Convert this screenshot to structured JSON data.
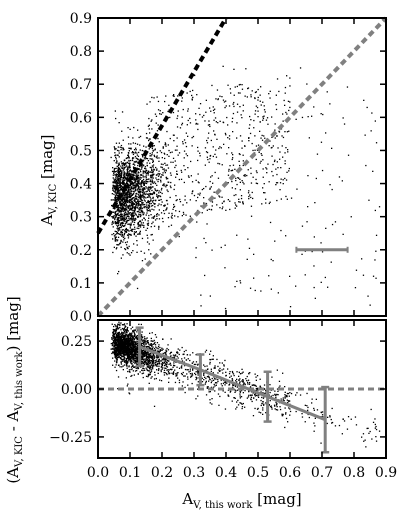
{
  "chart_data": [
    {
      "type": "scatter",
      "panel": "top",
      "xlabel": "",
      "ylabel_main": "A",
      "ylabel_sub": "V, KIC",
      "ylabel_unit": "[mag]",
      "xlim": [
        0.0,
        0.9
      ],
      "ylim": [
        0.0,
        0.9
      ],
      "yticks": [
        "0.0",
        "0.1",
        "0.2",
        "0.3",
        "0.4",
        "0.5",
        "0.6",
        "0.7",
        "0.8",
        "0.9"
      ],
      "scatter_description": "dense cloud of ~2500 points concentrated at x 0.03-0.2, y 0.2-0.5, with a sparser tail extending to x ~0.9",
      "reference_lines": [
        {
          "name": "",
          "style": "dashed",
          "color": "#000000",
          "x": [
            0.0,
            0.4
          ],
          "y": [
            0.25,
            0.9
          ]
        },
        {
          "name": "",
          "style": "dashed",
          "color": "#808080",
          "x": [
            0.0,
            0.9
          ],
          "y": [
            0.0,
            0.9
          ]
        }
      ],
      "error_scale_bar": {
        "x": [
          0.62,
          0.78
        ],
        "y": 0.2,
        "color": "#808080"
      }
    },
    {
      "type": "scatter",
      "panel": "bottom",
      "xlabel_main": "A",
      "xlabel_sub": "V, this work",
      "xlabel_unit": "[mag]",
      "ylabel_open": "(A",
      "ylabel_sub1": "V, KIC",
      "ylabel_mid": " - A",
      "ylabel_sub2": "V, this work",
      "ylabel_close": ") [mag]",
      "xlim": [
        0.0,
        0.9
      ],
      "ylim": [
        -0.36,
        0.36
      ],
      "xticks": [
        "0.0",
        "0.1",
        "0.2",
        "0.3",
        "0.4",
        "0.5",
        "0.6",
        "0.7",
        "0.8",
        "0.9"
      ],
      "yticks": [
        "0.25",
        "0.00",
        "−0.25"
      ],
      "ytick_values": [
        0.25,
        0.0,
        -0.25
      ],
      "scatter_description": "points concentrated at x 0.05-0.2, y 0.1-0.35, decreasing trend with larger x",
      "zero_line": {
        "y": 0.0,
        "style": "dashed",
        "color": "#808080"
      },
      "binned_means": {
        "color": "#808080",
        "x": [
          0.13,
          0.32,
          0.53,
          0.71
        ],
        "y": [
          0.22,
          0.1,
          -0.04,
          -0.16
        ],
        "yerr": [
          0.1,
          0.08,
          0.13,
          0.17
        ]
      }
    }
  ]
}
